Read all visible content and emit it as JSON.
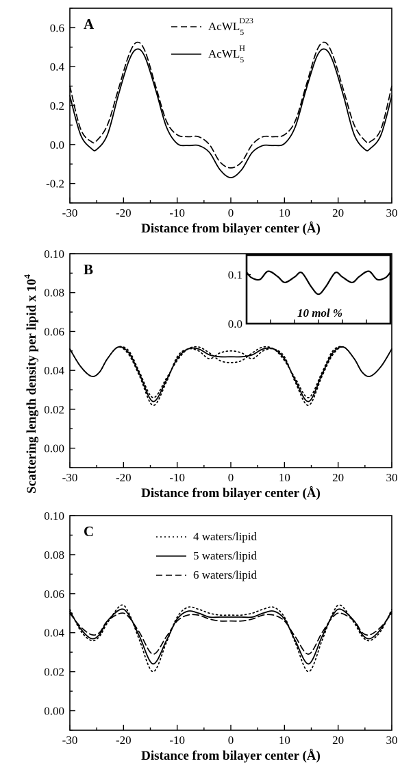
{
  "ylabel_main": "Scattering length density per lipid x 10",
  "ylabel_exp": "4",
  "chart_data": [
    {
      "type": "line",
      "panel": "A",
      "xlabel": "Distance from bilayer center (Å)",
      "xlim": [
        -30,
        30
      ],
      "ylim": [
        -0.3,
        0.7
      ],
      "xticks": [
        -30,
        -20,
        -10,
        0,
        10,
        20,
        30
      ],
      "xtick_labels": [
        "-30",
        "-20",
        "-10",
        "0",
        "10",
        "20",
        "30"
      ],
      "yticks": [
        -0.2,
        0.0,
        0.2,
        0.4,
        0.6
      ],
      "ytick_labels": [
        "-0.2",
        "0.0",
        "0.2",
        "0.4",
        "0.6"
      ],
      "legend_position": "top-center",
      "series": [
        {
          "name": "AcWL",
          "sub": "5",
          "sup": "D23",
          "style": "dashed",
          "x": [
            0,
            2,
            4,
            6,
            8,
            10,
            12,
            14,
            16,
            17.5,
            19,
            21,
            23,
            25,
            26,
            28,
            30
          ],
          "y": [
            -0.12,
            -0.09,
            0.0,
            0.04,
            0.04,
            0.05,
            0.12,
            0.3,
            0.48,
            0.525,
            0.46,
            0.28,
            0.1,
            0.02,
            0.015,
            0.08,
            0.3
          ]
        },
        {
          "name": "AcWL",
          "sub": "5",
          "sup": "H",
          "style": "solid",
          "x": [
            0,
            2,
            4,
            6,
            8,
            10,
            12,
            14,
            16,
            17.5,
            19,
            21,
            23,
            25,
            26,
            28,
            30
          ],
          "y": [
            -0.17,
            -0.13,
            -0.04,
            -0.005,
            -0.005,
            0.005,
            0.09,
            0.28,
            0.45,
            0.49,
            0.43,
            0.25,
            0.05,
            -0.025,
            -0.02,
            0.05,
            0.25
          ]
        }
      ]
    },
    {
      "type": "line",
      "panel": "B",
      "xlabel": "Distance from bilayer center (Å)",
      "xlim": [
        -30,
        30
      ],
      "ylim": [
        -0.01,
        0.1
      ],
      "xticks": [
        -30,
        -20,
        -10,
        0,
        10,
        20,
        30
      ],
      "xtick_labels": [
        "-30",
        "-20",
        "-10",
        "0",
        "10",
        "20",
        "30"
      ],
      "yticks": [
        0.0,
        0.02,
        0.04,
        0.06,
        0.08,
        0.1
      ],
      "ytick_labels": [
        "0.00",
        "0.02",
        "0.04",
        "0.06",
        "0.08",
        "0.10"
      ],
      "series": [
        {
          "style": "solid",
          "x": [
            0,
            2,
            4,
            6,
            8,
            10,
            12,
            14.5,
            17,
            19,
            21,
            23,
            24.5,
            26,
            28,
            30
          ],
          "y": [
            0.047,
            0.047,
            0.048,
            0.051,
            0.051,
            0.046,
            0.035,
            0.024,
            0.038,
            0.049,
            0.052,
            0.046,
            0.039,
            0.037,
            0.042,
            0.051
          ]
        },
        {
          "style": "dotted",
          "x": [
            0,
            2,
            4,
            6,
            8,
            10,
            12,
            14.5,
            17,
            19,
            21,
            23,
            24.5,
            26,
            28,
            30
          ],
          "y": [
            0.05,
            0.049,
            0.046,
            0.05,
            0.051,
            0.047,
            0.034,
            0.022,
            0.037,
            0.048,
            0.052,
            0.046,
            0.039,
            0.037,
            0.042,
            0.051
          ]
        },
        {
          "style": "dotted",
          "x": [
            0,
            2,
            4,
            6,
            8,
            10,
            12,
            14.5,
            17,
            19,
            21,
            23,
            24.5,
            26,
            28,
            30
          ],
          "y": [
            0.044,
            0.045,
            0.049,
            0.052,
            0.051,
            0.045,
            0.036,
            0.026,
            0.039,
            0.05,
            0.052,
            0.046,
            0.039,
            0.037,
            0.042,
            0.051
          ]
        }
      ],
      "inset": {
        "label": "10 mol %",
        "xlim": [
          -30,
          30
        ],
        "ylim": [
          0.0,
          0.14
        ],
        "yticks": [
          0.0,
          0.1
        ],
        "ytick_labels": [
          "0.0",
          "0.1"
        ],
        "x": [
          0,
          3,
          7,
          10,
          14,
          17,
          21,
          24.5,
          28,
          30
        ],
        "y": [
          0.06,
          0.075,
          0.104,
          0.095,
          0.084,
          0.096,
          0.107,
          0.09,
          0.094,
          0.105
        ]
      }
    },
    {
      "type": "line",
      "panel": "C",
      "xlabel": "Distance from bilayer center (Å)",
      "xlim": [
        -30,
        30
      ],
      "ylim": [
        -0.01,
        0.1
      ],
      "xticks": [
        -30,
        -20,
        -10,
        0,
        10,
        20,
        30
      ],
      "xtick_labels": [
        "-30",
        "-20",
        "-10",
        "0",
        "10",
        "20",
        "30"
      ],
      "yticks": [
        0.0,
        0.02,
        0.04,
        0.06,
        0.08,
        0.1
      ],
      "ytick_labels": [
        "0.00",
        "0.02",
        "0.04",
        "0.06",
        "0.08",
        "0.10"
      ],
      "legend_position": "top-center",
      "series": [
        {
          "name": "4 waters/lipid",
          "style": "dotted",
          "x": [
            0,
            2,
            4,
            6,
            8,
            10,
            12,
            14.5,
            17,
            19,
            20.5,
            23,
            24.5,
            26,
            28,
            30
          ],
          "y": [
            0.049,
            0.049,
            0.05,
            0.052,
            0.053,
            0.048,
            0.035,
            0.02,
            0.036,
            0.05,
            0.054,
            0.045,
            0.038,
            0.036,
            0.041,
            0.052
          ]
        },
        {
          "name": "5 waters/lipid",
          "style": "solid",
          "x": [
            0,
            2,
            4,
            6,
            8,
            10,
            12,
            14.5,
            17,
            19,
            20.5,
            23,
            24.5,
            26,
            28,
            30
          ],
          "y": [
            0.048,
            0.048,
            0.048,
            0.05,
            0.051,
            0.047,
            0.036,
            0.024,
            0.038,
            0.049,
            0.052,
            0.046,
            0.039,
            0.037,
            0.042,
            0.051
          ]
        },
        {
          "name": "6 waters/lipid",
          "style": "dashed",
          "x": [
            0,
            2,
            4,
            6,
            8,
            10,
            12,
            14.5,
            17,
            19,
            20.5,
            23,
            24.5,
            26,
            28,
            30
          ],
          "y": [
            0.046,
            0.046,
            0.047,
            0.049,
            0.049,
            0.046,
            0.038,
            0.029,
            0.04,
            0.048,
            0.05,
            0.046,
            0.04,
            0.039,
            0.043,
            0.05
          ]
        }
      ]
    }
  ]
}
